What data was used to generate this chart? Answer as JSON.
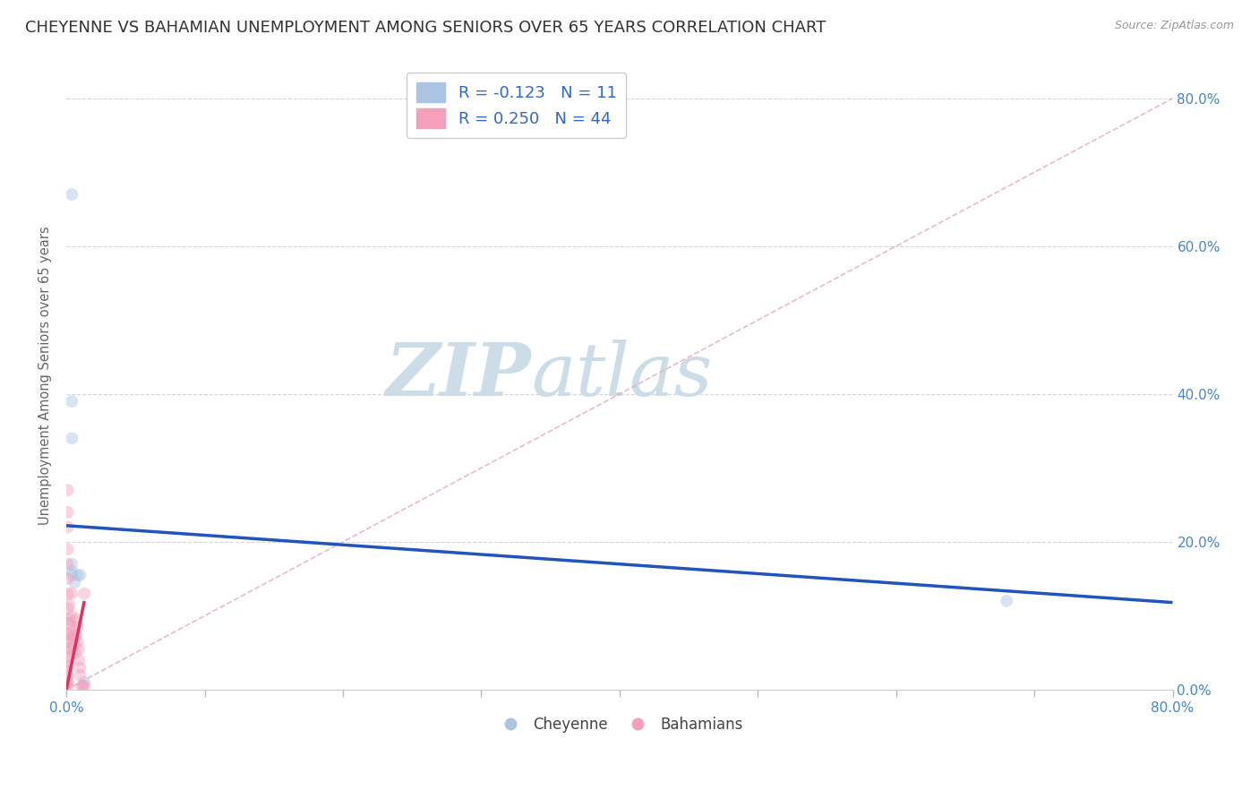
{
  "title": "CHEYENNE VS BAHAMIAN UNEMPLOYMENT AMONG SENIORS OVER 65 YEARS CORRELATION CHART",
  "source": "Source: ZipAtlas.com",
  "ylabel": "Unemployment Among Seniors over 65 years",
  "cheyenne_R": -0.123,
  "cheyenne_N": 11,
  "bahamian_R": 0.25,
  "bahamian_N": 44,
  "cheyenne_color": "#aac4e2",
  "bahamian_color": "#f4a0bc",
  "cheyenne_line_color": "#2255bb",
  "bahamian_line_color": "#e03060",
  "ref_line_color": "#e8a8c0",
  "grid_color": "#cccccc",
  "background_color": "#ffffff",
  "xlim": [
    0.0,
    0.8
  ],
  "ylim": [
    0.0,
    0.85
  ],
  "yticks": [
    0.0,
    0.2,
    0.4,
    0.6,
    0.8
  ],
  "cheyenne_x": [
    0.004,
    0.004,
    0.004,
    0.004,
    0.004,
    0.006,
    0.008,
    0.01,
    0.68,
    0.004,
    0.013
  ],
  "cheyenne_y": [
    0.67,
    0.39,
    0.34,
    0.17,
    0.155,
    0.145,
    0.155,
    0.155,
    0.12,
    0.16,
    0.01
  ],
  "bahamian_x": [
    0.001,
    0.001,
    0.001,
    0.001,
    0.001,
    0.001,
    0.001,
    0.001,
    0.001,
    0.001,
    0.001,
    0.001,
    0.001,
    0.001,
    0.001,
    0.001,
    0.001,
    0.001,
    0.001,
    0.001,
    0.002,
    0.002,
    0.002,
    0.002,
    0.003,
    0.003,
    0.004,
    0.004,
    0.005,
    0.005,
    0.006,
    0.006,
    0.007,
    0.007,
    0.008,
    0.008,
    0.009,
    0.009,
    0.01,
    0.01,
    0.011,
    0.012,
    0.013,
    0.013
  ],
  "bahamian_y": [
    0.27,
    0.24,
    0.22,
    0.19,
    0.17,
    0.15,
    0.13,
    0.11,
    0.09,
    0.075,
    0.065,
    0.055,
    0.045,
    0.038,
    0.032,
    0.025,
    0.018,
    0.012,
    0.008,
    0.004,
    0.115,
    0.095,
    0.075,
    0.055,
    0.09,
    0.07,
    0.13,
    0.1,
    0.08,
    0.06,
    0.07,
    0.05,
    0.095,
    0.075,
    0.085,
    0.065,
    0.055,
    0.04,
    0.03,
    0.02,
    0.005,
    0.005,
    0.13,
    0.005
  ],
  "cheyenne_line_x": [
    0.0,
    0.8
  ],
  "cheyenne_line_y": [
    0.222,
    0.118
  ],
  "bahamian_line_x": [
    0.0,
    0.013
  ],
  "bahamian_line_y": [
    0.0,
    0.12
  ],
  "ref_line_x": [
    0.0,
    0.8
  ],
  "ref_line_y": [
    0.0,
    0.8
  ],
  "marker_size": 100,
  "marker_alpha": 0.45,
  "watermark_zip": "ZIP",
  "watermark_atlas": "atlas",
  "watermark_color": "#ccdde8",
  "title_fontsize": 13,
  "label_fontsize": 10.5,
  "tick_fontsize": 11,
  "legend_fontsize": 13
}
